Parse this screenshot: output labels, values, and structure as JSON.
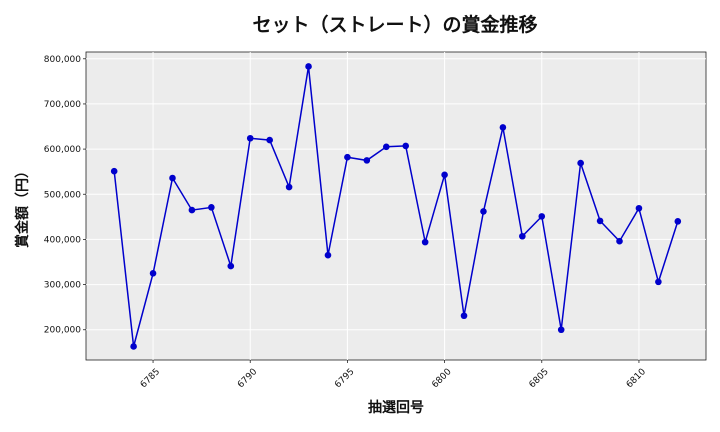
{
  "chart_data": {
    "type": "line",
    "title": "セット（ストレート）の賞金推移",
    "xlabel": "抽選回号",
    "ylabel": "賞金額（円）",
    "x_ticks": [
      6785,
      6790,
      6795,
      6800,
      6805,
      6810
    ],
    "y_ticks": [
      "200,000",
      "300,000",
      "400,000",
      "500,000",
      "600,000",
      "700,000",
      "800,000"
    ],
    "y_tick_values": [
      200000,
      300000,
      400000,
      500000,
      600000,
      700000,
      800000
    ],
    "xlim": [
      6781.55,
      6813.45
    ],
    "ylim": [
      133000,
      815000
    ],
    "grid": true,
    "series": [
      {
        "color": "#0000cc",
        "marker": "circle",
        "x": [
          6783,
          6784,
          6785,
          6786,
          6787,
          6788,
          6789,
          6790,
          6791,
          6792,
          6793,
          6794,
          6795,
          6796,
          6797,
          6798,
          6799,
          6800,
          6801,
          6802,
          6803,
          6804,
          6805,
          6806,
          6807,
          6808,
          6809,
          6810,
          6811,
          6812
        ],
        "values": [
          551000,
          163000,
          325000,
          536000,
          465000,
          471000,
          341000,
          624000,
          620000,
          516000,
          783000,
          365000,
          582000,
          575000,
          605000,
          607000,
          394000,
          543000,
          231000,
          462000,
          648000,
          407000,
          451000,
          200000,
          569000,
          441000,
          396000,
          469000,
          306000,
          440000
        ]
      }
    ]
  }
}
